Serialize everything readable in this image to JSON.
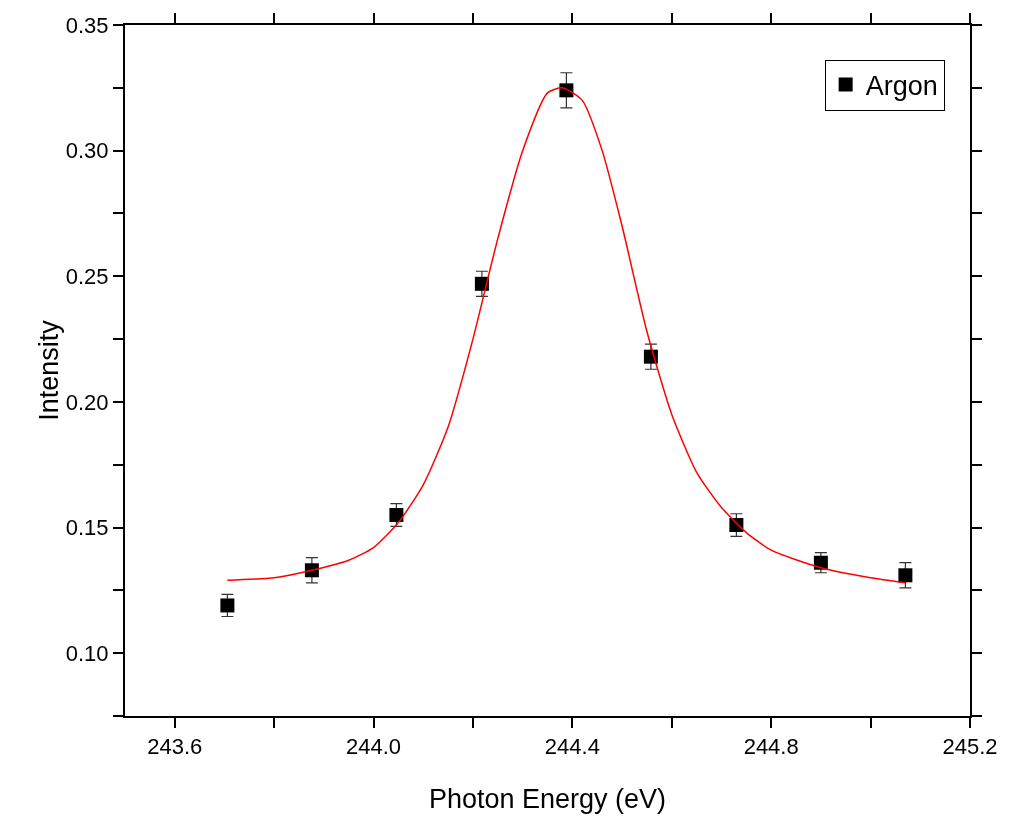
{
  "chart_data": {
    "type": "scatter",
    "xlabel": "Photon Energy (eV)",
    "ylabel": "Intensity",
    "xlim": [
      243.5,
      245.2
    ],
    "xticks": [
      {
        "value": 243.6,
        "label": "243.6"
      },
      {
        "value": 243.8,
        "label": null
      },
      {
        "value": 244.0,
        "label": "244.0"
      },
      {
        "value": 244.2,
        "label": null
      },
      {
        "value": 244.4,
        "label": "244.4"
      },
      {
        "value": 244.6,
        "label": null
      },
      {
        "value": 244.8,
        "label": "244.8"
      },
      {
        "value": 245.0,
        "label": null
      },
      {
        "value": 245.2,
        "label": "245.2"
      }
    ],
    "ylim": [
      0.075,
      0.35
    ],
    "yticks": [
      {
        "value": 0.075,
        "label": null
      },
      {
        "value": 0.1,
        "label": "0.10"
      },
      {
        "value": 0.125,
        "label": null
      },
      {
        "value": 0.15,
        "label": "0.15"
      },
      {
        "value": 0.175,
        "label": null
      },
      {
        "value": 0.2,
        "label": "0.20"
      },
      {
        "value": 0.225,
        "label": null
      },
      {
        "value": 0.25,
        "label": "0.25"
      },
      {
        "value": 0.275,
        "label": null
      },
      {
        "value": 0.3,
        "label": "0.30"
      },
      {
        "value": 0.325,
        "label": null
      },
      {
        "value": 0.35,
        "label": "0.35"
      }
    ],
    "grid": false,
    "legend": "top right",
    "marker": "square",
    "series": [
      {
        "name": "Argon",
        "color": "#000000",
        "x": [
          243.706,
          243.876,
          244.046,
          244.218,
          244.388,
          244.558,
          244.73,
          244.9,
          245.07
        ],
        "values": [
          0.119,
          0.133,
          0.155,
          0.247,
          0.324,
          0.218,
          0.151,
          0.136,
          0.131
        ],
        "errors": [
          0.0044,
          0.005,
          0.0045,
          0.005,
          0.007,
          0.005,
          0.0045,
          0.004,
          0.005
        ]
      },
      {
        "type": "line",
        "color": "#ff0000",
        "marker": "none",
        "x": [
          243.706,
          243.8,
          243.876,
          243.95,
          244.0,
          244.05,
          244.1,
          244.15,
          244.2,
          244.25,
          244.3,
          244.35,
          244.38,
          244.42,
          244.46,
          244.5,
          244.55,
          244.6,
          244.65,
          244.7,
          244.75,
          244.8,
          244.9,
          245.0,
          245.07
        ],
        "values": [
          0.129,
          0.13,
          0.133,
          0.137,
          0.142,
          0.152,
          0.167,
          0.19,
          0.225,
          0.265,
          0.3,
          0.323,
          0.325,
          0.32,
          0.3,
          0.27,
          0.228,
          0.195,
          0.172,
          0.158,
          0.148,
          0.141,
          0.134,
          0.13,
          0.128
        ]
      }
    ]
  }
}
